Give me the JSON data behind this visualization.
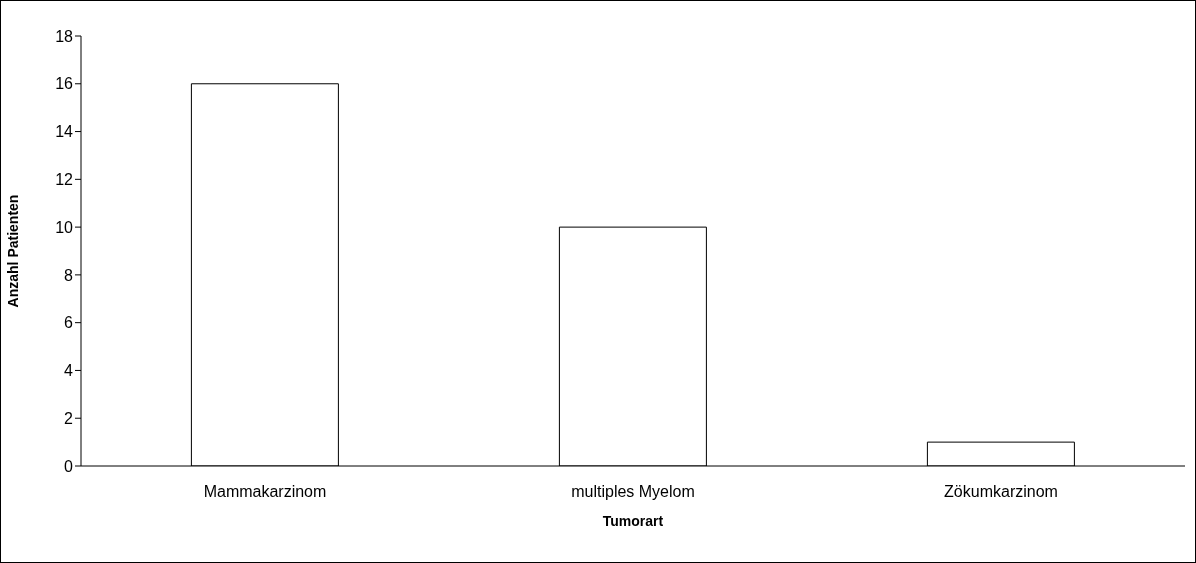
{
  "chart_data": {
    "type": "bar",
    "categories": [
      "Mammakarzinom",
      "multiples Myelom",
      "Zökumkarzinom"
    ],
    "values": [
      16,
      10,
      1
    ],
    "color": "#ffffff",
    "xlabel": "Tumorart",
    "ylabel": "Anzahl Patienten",
    "ylim": [
      0,
      18
    ],
    "yticks": [
      0,
      2,
      4,
      6,
      8,
      10,
      12,
      14,
      16,
      18
    ],
    "grid": false,
    "legend": false
  }
}
